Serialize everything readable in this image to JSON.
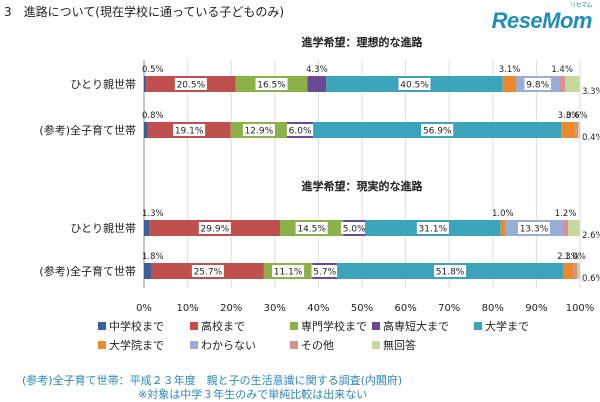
{
  "heading": "3　進路について(現在学校に通っている子どものみ)",
  "logo": {
    "text": "ReseMom",
    "small_text": "リセマム"
  },
  "colors": {
    "中学校まで": "#3a5f9c",
    "高校まで": "#c0504d",
    "専門学校まで": "#8cb04a",
    "高専短大まで": "#6a4a96",
    "大学まで": "#3ba3bc",
    "大学院まで": "#e98a2e",
    "わからない": "#98aed8",
    "その他": "#d8918f",
    "無回答": "#c4d99a"
  },
  "chart_data": {
    "type": "bar",
    "stacked": true,
    "orientation": "horizontal",
    "xlim": [
      0,
      100
    ],
    "x_ticks": [
      "0%",
      "10%",
      "20%",
      "30%",
      "40%",
      "50%",
      "60%",
      "70%",
      "80%",
      "90%",
      "100%"
    ],
    "legend": {
      "placement": "bottom",
      "row1": [
        "中学校まで",
        "高校まで",
        "専門学校まで",
        "高専短大まで",
        "大学まで"
      ],
      "row2": [
        "大学院まで",
        "わからない",
        "その他",
        "無回答"
      ]
    },
    "groups": [
      {
        "title": "進学希望：理想的な進路",
        "rows": [
          {
            "category": "ひとり親世帯",
            "values": [
              0.5,
              20.5,
              16.5,
              4.3,
              40.5,
              3.1,
              9.8,
              1.4,
              3.3
            ],
            "labels": [
              "0.5%",
              "20.5%",
              "16.5%",
              "4.3%",
              "40.5%",
              "3.1%",
              "9.8%",
              "1.4%",
              "3.3%"
            ]
          },
          {
            "category": "(参考)全子育て世帯",
            "values": [
              0.8,
              19.1,
              12.9,
              6.0,
              56.9,
              3.3,
              0.0,
              0.6,
              0.4
            ],
            "labels": [
              "0.8%",
              "19.1%",
              "12.9%",
              "6.0%",
              "56.9%",
              "3.3%",
              "",
              "0.6%",
              "0.4%"
            ]
          }
        ]
      },
      {
        "title": "進学希望：現実的な進路",
        "rows": [
          {
            "category": "ひとり親世帯",
            "values": [
              1.3,
              29.9,
              14.5,
              5.0,
              31.1,
              1.0,
              13.3,
              1.2,
              2.6
            ],
            "labels": [
              "1.3%",
              "29.9%",
              "14.5%",
              "5.0%",
              "31.1%",
              "1.0%",
              "13.3%",
              "1.2%",
              "2.6%"
            ]
          },
          {
            "category": "(参考)全子育て世帯",
            "values": [
              1.8,
              25.7,
              11.1,
              5.7,
              51.8,
              2.3,
              0.0,
              1.0,
              0.6
            ],
            "labels": [
              "1.8%",
              "25.7%",
              "11.1%",
              "5.7%",
              "51.8%",
              "2.3%",
              "",
              "1.0%",
              "0.6%"
            ]
          }
        ]
      }
    ]
  },
  "footer": {
    "line1": "(参考)全子育て世帯：平成２３年度　親と子の生活意識に関する調査(内閣府)",
    "line2": "※対象は中学３年生のみで単純比較は出来ない"
  }
}
